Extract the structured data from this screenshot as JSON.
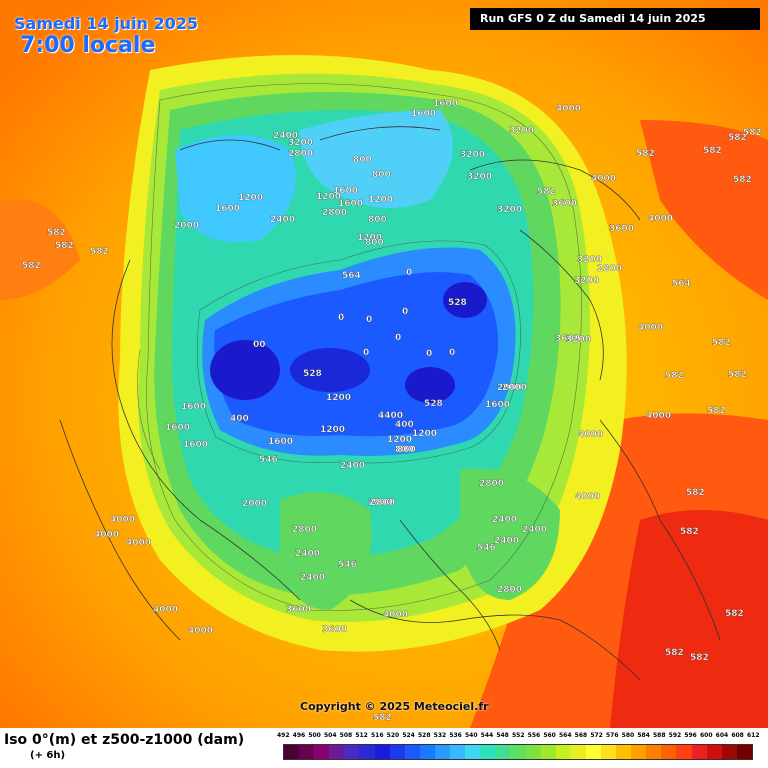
{
  "header": {
    "date": "Samedi 14 juin 2025",
    "time": "7:00 locale",
    "run": "Run GFS 0 Z du Samedi 14 juin 2025"
  },
  "copyright": "Copyright © 2025 Meteociel.fr",
  "legend": {
    "title": "Iso 0°(m) et z500-z1000 (dam)",
    "subtitle": "(+ 6h)",
    "ticks": [
      "492",
      "496",
      "500",
      "504",
      "508",
      "512",
      "516",
      "520",
      "524",
      "528",
      "532",
      "536",
      "540",
      "544",
      "548",
      "552",
      "556",
      "560",
      "564",
      "568",
      "572",
      "576",
      "580",
      "584",
      "588",
      "592",
      "596",
      "600",
      "604",
      "608",
      "612"
    ],
    "colors": [
      "#4a0033",
      "#6a0050",
      "#8a006e",
      "#6a1a9a",
      "#4a2ac0",
      "#2a2ad8",
      "#1a1ae0",
      "#1a3af0",
      "#1a5aff",
      "#1a7aff",
      "#2a9aff",
      "#3ab8ff",
      "#40d8f0",
      "#30e0c0",
      "#40e090",
      "#60e060",
      "#80e040",
      "#a0e830",
      "#c8f020",
      "#e8f020",
      "#ffff30",
      "#ffe020",
      "#ffc000",
      "#ffa000",
      "#ff8000",
      "#ff6000",
      "#ff4010",
      "#ee2020",
      "#d01010",
      "#a00808",
      "#700000"
    ]
  },
  "map_labels": [
    {
      "text": "1600"
    },
    {
      "text": "1200"
    },
    {
      "text": "1600"
    },
    {
      "text": "2000"
    },
    {
      "text": "2400"
    },
    {
      "text": "2800"
    },
    {
      "text": "3200"
    },
    {
      "text": "2400"
    },
    {
      "text": "1600"
    },
    {
      "text": "800"
    },
    {
      "text": "800"
    },
    {
      "text": "1200"
    },
    {
      "text": "1600"
    },
    {
      "text": "2800"
    },
    {
      "text": "1200"
    },
    {
      "text": "1600"
    },
    {
      "text": "800"
    },
    {
      "text": "1200"
    },
    {
      "text": "800"
    },
    {
      "text": "3200"
    },
    {
      "text": "3200"
    },
    {
      "text": "3200"
    },
    {
      "text": "4000"
    },
    {
      "text": "3200"
    },
    {
      "text": "3600"
    },
    {
      "text": "4000"
    },
    {
      "text": "3600"
    },
    {
      "text": "3200"
    },
    {
      "text": "2800"
    },
    {
      "text": "3200"
    },
    {
      "text": "4000"
    },
    {
      "text": "4000"
    },
    {
      "text": "528"
    },
    {
      "text": "528"
    },
    {
      "text": "528"
    },
    {
      "text": "0"
    },
    {
      "text": "0"
    },
    {
      "text": "0"
    },
    {
      "text": "0"
    },
    {
      "text": "0"
    },
    {
      "text": "0"
    },
    {
      "text": "0"
    },
    {
      "text": "0"
    },
    {
      "text": "00"
    },
    {
      "text": "400"
    },
    {
      "text": "800"
    },
    {
      "text": "1200"
    },
    {
      "text": "1600"
    },
    {
      "text": "2000"
    },
    {
      "text": "2400"
    },
    {
      "text": "2800"
    },
    {
      "text": "2400"
    },
    {
      "text": "2800"
    },
    {
      "text": "2400"
    },
    {
      "text": "3600"
    },
    {
      "text": "3200"
    },
    {
      "text": "4000"
    },
    {
      "text": "4000"
    },
    {
      "text": "4000"
    },
    {
      "text": "2800"
    },
    {
      "text": "2400"
    },
    {
      "text": "1600"
    },
    {
      "text": "1600"
    },
    {
      "text": "1600"
    },
    {
      "text": "2000"
    },
    {
      "text": "2400"
    },
    {
      "text": "2800"
    },
    {
      "text": "2400"
    },
    {
      "text": "2800"
    },
    {
      "text": "3600"
    },
    {
      "text": "4000"
    },
    {
      "text": "4000"
    },
    {
      "text": "3600"
    },
    {
      "text": "4000"
    },
    {
      "text": "4000"
    },
    {
      "text": "4000"
    },
    {
      "text": "4000"
    },
    {
      "text": "1600"
    },
    {
      "text": "2000"
    },
    {
      "text": "1200"
    },
    {
      "text": "1200"
    },
    {
      "text": "1200"
    },
    {
      "text": "800"
    },
    {
      "text": "400"
    },
    {
      "text": "4400"
    },
    {
      "text": "582"
    },
    {
      "text": "582"
    },
    {
      "text": "582"
    },
    {
      "text": "582"
    },
    {
      "text": "582"
    },
    {
      "text": "582"
    },
    {
      "text": "582"
    },
    {
      "text": "582"
    },
    {
      "text": "582"
    },
    {
      "text": "582"
    },
    {
      "text": "582"
    },
    {
      "text": "582"
    },
    {
      "text": "582"
    },
    {
      "text": "582"
    },
    {
      "text": "582"
    },
    {
      "text": "582"
    },
    {
      "text": "582"
    },
    {
      "text": "582"
    },
    {
      "text": "582"
    },
    {
      "text": "582"
    },
    {
      "text": "564"
    },
    {
      "text": "564"
    },
    {
      "text": "546"
    },
    {
      "text": "546"
    },
    {
      "text": "546"
    },
    {
      "text": "546"
    }
  ]
}
